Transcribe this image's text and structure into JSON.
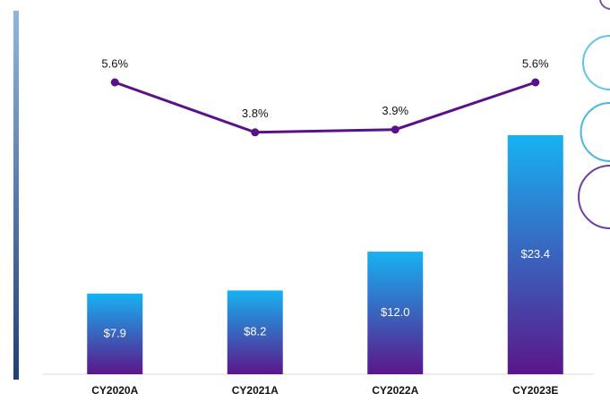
{
  "chart_data": {
    "type": "bar",
    "categories": [
      "CY2020A",
      "CY2021A",
      "CY2022A",
      "CY2023E"
    ],
    "series": [
      {
        "type": "bar",
        "color": [
          "#17b2f2",
          "#5b1689"
        ],
        "values": [
          7.9,
          8.2,
          12.0,
          23.4
        ],
        "value_labels": [
          "$7.9",
          "$8.2",
          "$12.0",
          "$23.4"
        ]
      },
      {
        "type": "line",
        "color": "#5b0f8a",
        "values": [
          5.6,
          3.8,
          3.9,
          5.6
        ],
        "value_labels": [
          "5.6%",
          "3.8%",
          "3.9%",
          "5.6%"
        ]
      }
    ]
  }
}
